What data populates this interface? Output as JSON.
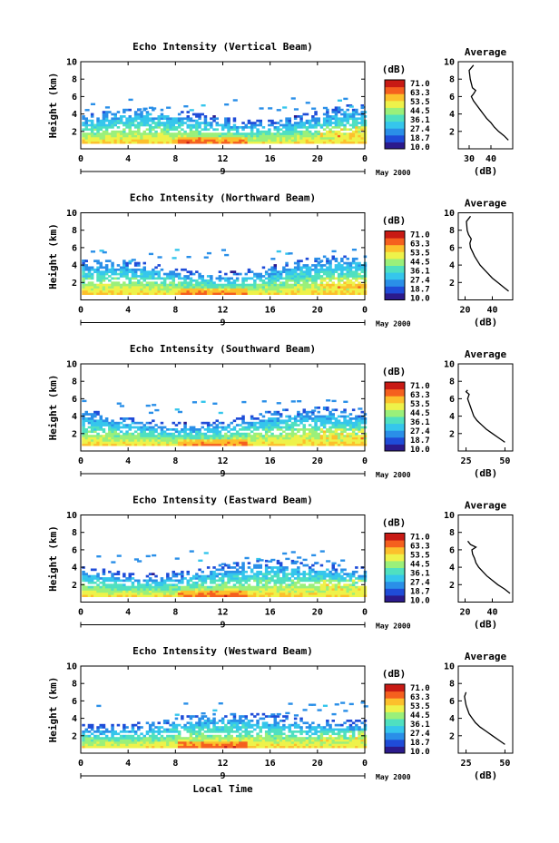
{
  "chart_data": [
    {
      "type": "heatmap",
      "title": "Echo Intensity (Vertical Beam)",
      "ylabel": "Height (km)",
      "ylim": [
        0,
        10
      ],
      "yticks": [
        "10",
        "8",
        "6",
        "4",
        "2"
      ],
      "xlim": [
        0,
        24
      ],
      "xticks": [
        "0",
        "4",
        "8",
        "12",
        "16",
        "20",
        "0"
      ],
      "date_marker": "9",
      "date_label": "May 2000",
      "colorbar": {
        "title": "(dB)",
        "labels": [
          "71.0",
          "63.3",
          "53.5",
          "44.5",
          "36.1",
          "27.4",
          "18.7",
          "10.0"
        ]
      },
      "profile": {
        "title": "Average",
        "xlabel": "(dB)",
        "xticks": [
          "30",
          "40"
        ],
        "xlim": [
          25,
          50
        ],
        "heights": [
          1.0,
          1.5,
          2.0,
          2.5,
          3.0,
          3.5,
          4.0,
          4.5,
          5.0,
          5.5,
          6.0,
          6.3,
          6.7,
          7.0,
          8.0,
          9.0,
          9.6
        ],
        "values": [
          48.0,
          46.0,
          43.5,
          41.5,
          40.0,
          38.0,
          36.5,
          35.0,
          33.5,
          32.0,
          31.0,
          32.0,
          33.0,
          31.5,
          30.5,
          30.0,
          32.0
        ]
      }
    },
    {
      "type": "heatmap",
      "title": "Echo Intensity (Northward Beam)",
      "ylabel": "Height (km)",
      "ylim": [
        0,
        10
      ],
      "yticks": [
        "10",
        "8",
        "6",
        "4",
        "2"
      ],
      "xlim": [
        0,
        24
      ],
      "xticks": [
        "0",
        "4",
        "8",
        "12",
        "16",
        "20",
        "0"
      ],
      "date_marker": "9",
      "date_label": "May 2000",
      "colorbar": {
        "title": "(dB)",
        "labels": [
          "71.0",
          "63.3",
          "53.5",
          "44.5",
          "36.1",
          "27.4",
          "18.7",
          "10.0"
        ]
      },
      "profile": {
        "title": "Average",
        "xlabel": "(dB)",
        "xticks": [
          "20",
          "40"
        ],
        "xlim": [
          15,
          55
        ],
        "heights": [
          1.0,
          1.5,
          2.0,
          2.5,
          3.0,
          3.5,
          4.0,
          4.5,
          5.0,
          5.5,
          6.0,
          6.5,
          7.0,
          7.5,
          8.0,
          9.0,
          9.6
        ],
        "values": [
          52.0,
          48.0,
          44.0,
          40.0,
          37.0,
          34.0,
          31.0,
          29.0,
          27.0,
          25.5,
          24.0,
          23.5,
          24.5,
          22.5,
          21.5,
          21.0,
          24.0
        ]
      }
    },
    {
      "type": "heatmap",
      "title": "Echo Intensity (Southward Beam)",
      "ylabel": "Height (km)",
      "ylim": [
        0,
        10
      ],
      "yticks": [
        "10",
        "8",
        "6",
        "4",
        "2"
      ],
      "xlim": [
        0,
        24
      ],
      "xticks": [
        "0",
        "4",
        "8",
        "12",
        "16",
        "20",
        "0"
      ],
      "date_marker": "9",
      "date_label": "May 2000",
      "colorbar": {
        "title": "(dB)",
        "labels": [
          "71.0",
          "63.3",
          "53.5",
          "44.5",
          "36.1",
          "27.4",
          "18.7",
          "10.0"
        ]
      },
      "profile": {
        "title": "Average",
        "xlabel": "(dB)",
        "xticks": [
          "25",
          "50"
        ],
        "xlim": [
          20,
          55
        ],
        "heights": [
          1.0,
          1.5,
          2.0,
          2.5,
          3.0,
          3.5,
          4.0,
          4.5,
          5.0,
          5.5,
          6.0,
          6.5,
          6.8,
          7.0
        ],
        "values": [
          50.0,
          46.0,
          42.0,
          38.0,
          35.0,
          32.0,
          30.0,
          29.0,
          28.0,
          27.0,
          26.0,
          27.0,
          25.0,
          26.0
        ]
      }
    },
    {
      "type": "heatmap",
      "title": "Echo Intensity (Eastward Beam)",
      "ylabel": "Height (km)",
      "ylim": [
        0,
        10
      ],
      "yticks": [
        "10",
        "8",
        "6",
        "4",
        "2"
      ],
      "xlim": [
        0,
        24
      ],
      "xticks": [
        "0",
        "4",
        "8",
        "12",
        "16",
        "20",
        "0"
      ],
      "date_marker": "9",
      "date_label": "May 2000",
      "colorbar": {
        "title": "(dB)",
        "labels": [
          "71.0",
          "63.3",
          "53.5",
          "44.5",
          "36.1",
          "27.4",
          "18.7",
          "10.0"
        ]
      },
      "profile": {
        "title": "Average",
        "xlabel": "(dB)",
        "xticks": [
          "20",
          "40"
        ],
        "xlim": [
          15,
          55
        ],
        "heights": [
          1.0,
          1.5,
          2.0,
          2.5,
          3.0,
          3.5,
          4.0,
          4.5,
          5.0,
          5.5,
          6.0,
          6.3,
          6.6,
          7.0
        ],
        "values": [
          53.0,
          49.0,
          44.0,
          40.0,
          36.0,
          33.0,
          30.0,
          28.0,
          27.0,
          25.5,
          25.0,
          28.0,
          24.0,
          22.0
        ]
      }
    },
    {
      "type": "heatmap",
      "title": "Echo Intensity (Westward Beam)",
      "ylabel": "Height (km)",
      "ylim": [
        0,
        10
      ],
      "yticks": [
        "10",
        "8",
        "6",
        "4",
        "2"
      ],
      "xlim": [
        0,
        24
      ],
      "xticks": [
        "0",
        "4",
        "8",
        "12",
        "16",
        "20",
        "0"
      ],
      "date_marker": "9",
      "date_label": "May 2000",
      "xlabel": "Local Time",
      "colorbar": {
        "title": "(dB)",
        "labels": [
          "71.0",
          "63.3",
          "53.5",
          "44.5",
          "36.1",
          "27.4",
          "18.7",
          "10.0"
        ]
      },
      "profile": {
        "title": "Average",
        "xlabel": "(dB)",
        "xticks": [
          "25",
          "50"
        ],
        "xlim": [
          20,
          55
        ],
        "heights": [
          1.0,
          1.5,
          2.0,
          2.5,
          3.0,
          3.5,
          4.0,
          4.5,
          5.0,
          5.5,
          6.0,
          6.5,
          7.0
        ],
        "values": [
          50.0,
          46.0,
          42.0,
          38.0,
          34.0,
          31.0,
          29.0,
          27.0,
          26.0,
          25.0,
          24.5,
          24.0,
          25.0
        ]
      }
    }
  ],
  "colors": {
    "scale": [
      "#2b1a8c",
      "#1f4cd8",
      "#2a8fe8",
      "#35c6ec",
      "#4fe0c0",
      "#9af07a",
      "#eef24a",
      "#fcc02c",
      "#f5601e",
      "#c81a14"
    ]
  }
}
